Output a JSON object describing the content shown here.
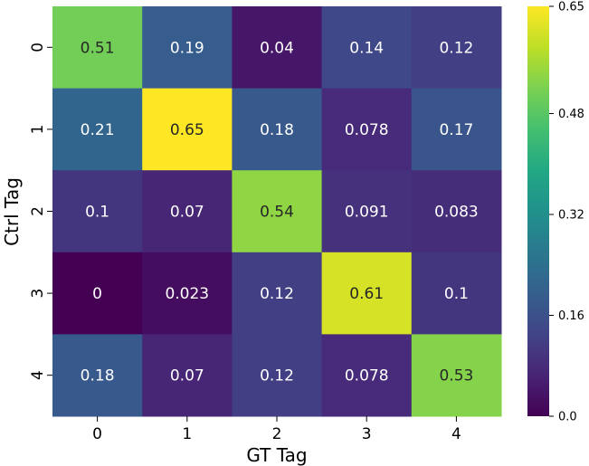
{
  "chart_data": {
    "type": "heatmap",
    "title": "",
    "xlabel": "GT Tag",
    "ylabel": "Ctrl Tag",
    "x_categories": [
      "0",
      "1",
      "2",
      "3",
      "4"
    ],
    "y_categories": [
      "0",
      "1",
      "2",
      "3",
      "4"
    ],
    "values": [
      [
        0.51,
        0.19,
        0.04,
        0.14,
        0.12
      ],
      [
        0.21,
        0.65,
        0.18,
        0.078,
        0.17
      ],
      [
        0.1,
        0.07,
        0.54,
        0.091,
        0.083
      ],
      [
        0,
        0.023,
        0.12,
        0.61,
        0.1
      ],
      [
        0.18,
        0.07,
        0.12,
        0.078,
        0.53
      ]
    ],
    "value_labels": [
      [
        "0.51",
        "0.19",
        "0.04",
        "0.14",
        "0.12"
      ],
      [
        "0.21",
        "0.65",
        "0.18",
        "0.078",
        "0.17"
      ],
      [
        "0.1",
        "0.07",
        "0.54",
        "0.091",
        "0.083"
      ],
      [
        "0",
        "0.023",
        "0.12",
        "0.61",
        "0.1"
      ],
      [
        "0.18",
        "0.07",
        "0.12",
        "0.078",
        "0.53"
      ]
    ],
    "colormap": "viridis",
    "vmin": 0.0,
    "vmax": 0.65,
    "colorbar_ticks": [
      "0.0",
      "0.16",
      "0.32",
      "0.48",
      "0.65"
    ],
    "colorbar_tick_values": [
      0.0,
      0.16,
      0.32,
      0.48,
      0.65
    ]
  }
}
